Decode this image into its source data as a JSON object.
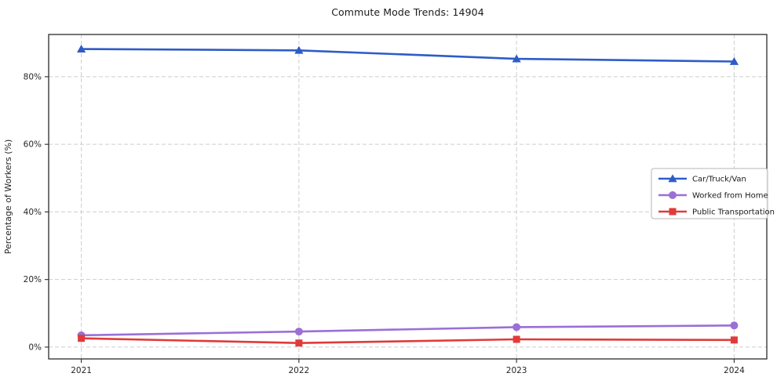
{
  "chart_data": {
    "type": "line",
    "title": "Commute Mode Trends: 14904",
    "xlabel": "",
    "ylabel": "Percentage of Workers (%)",
    "x": [
      2021,
      2022,
      2023,
      2024
    ],
    "xtick_labels": [
      "2021",
      "2022",
      "2023",
      "2024"
    ],
    "ytick_values": [
      0,
      20,
      40,
      60,
      80
    ],
    "ytick_labels": [
      "0%",
      "20%",
      "40%",
      "60%",
      "80%"
    ],
    "xlim": [
      2020.85,
      2024.15
    ],
    "ylim": [
      -3.5,
      92.5
    ],
    "grid": true,
    "grid_style": "dashed",
    "legend_position": "center-right",
    "series": [
      {
        "name": "Car/Truck/Van",
        "color": "#2e5cc7",
        "marker": "triangle",
        "values": [
          88.2,
          87.8,
          85.3,
          84.5
        ]
      },
      {
        "name": "Worked from Home",
        "color": "#9b6fd6",
        "marker": "circle",
        "values": [
          3.5,
          4.6,
          5.9,
          6.4
        ]
      },
      {
        "name": "Public Transportation",
        "color": "#e03a3a",
        "marker": "square",
        "values": [
          2.6,
          1.2,
          2.3,
          2.1
        ]
      }
    ]
  }
}
